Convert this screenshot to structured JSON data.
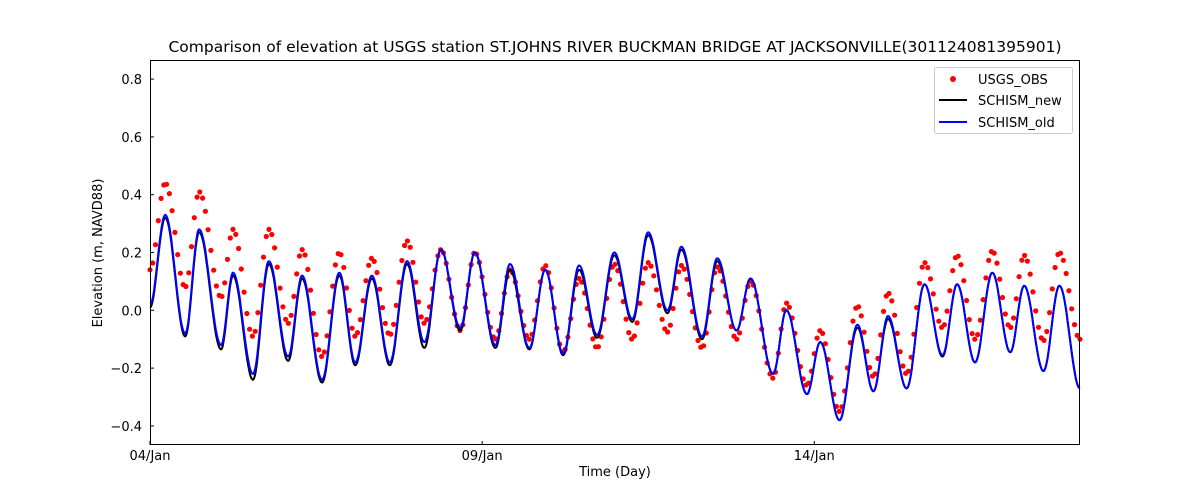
{
  "chart_data": {
    "type": "line",
    "title": "Comparison of elevation at USGS station ST.JOHNS RIVER BUCKMAN BRIDGE AT JACKSONVILLE(301124081395901)",
    "xlabel": "Time (Day)",
    "ylabel": "Elevation (m, NAVD88)",
    "x_unit": "days since 04/Jan",
    "xlim": [
      0,
      14
    ],
    "ylim": [
      -0.466,
      0.866
    ],
    "x_ticks": [
      {
        "value": 0,
        "label": "04/Jan"
      },
      {
        "value": 5,
        "label": "09/Jan"
      },
      {
        "value": 10,
        "label": "14/Jan"
      }
    ],
    "y_ticks": [
      {
        "value": 0.8,
        "label": "0.8"
      },
      {
        "value": 0.6,
        "label": "0.6"
      },
      {
        "value": 0.4,
        "label": "0.4"
      },
      {
        "value": 0.2,
        "label": "0.2"
      },
      {
        "value": 0.0,
        "label": "0.0"
      },
      {
        "value": -0.2,
        "label": "−0.2"
      },
      {
        "value": -0.4,
        "label": "−0.4"
      }
    ],
    "grid": false,
    "legend_position": "top-right",
    "extrema_times": [
      0,
      0.23,
      0.53,
      0.74,
      1.07,
      1.25,
      1.55,
      1.79,
      2.08,
      2.29,
      2.59,
      2.85,
      3.09,
      3.34,
      3.61,
      3.87,
      4.13,
      4.38,
      4.67,
      4.89,
      5.2,
      5.42,
      5.71,
      5.95,
      6.22,
      6.46,
      6.73,
      6.99,
      7.26,
      7.5,
      7.79,
      8.0,
      8.31,
      8.54,
      8.83,
      9.04,
      9.38,
      9.58,
      9.89,
      10.09,
      10.38,
      10.65,
      10.89,
      11.11,
      11.39,
      11.66,
      11.93,
      12.15,
      12.42,
      12.68,
      12.95,
      13.16,
      13.45,
      13.69,
      14.0
    ],
    "series": [
      {
        "name": "USGS_OBS",
        "style": "points",
        "color": "#ff0000",
        "values": [
          0.14,
          0.44,
          0.08,
          0.41,
          0.045,
          0.28,
          -0.09,
          0.28,
          -0.045,
          0.21,
          -0.16,
          0.2,
          -0.09,
          0.18,
          -0.085,
          0.24,
          -0.045,
          0.21,
          -0.07,
          0.2,
          -0.1,
          0.14,
          -0.1,
          0.155,
          -0.145,
          0.11,
          -0.13,
          0.16,
          -0.1,
          0.165,
          -0.075,
          0.155,
          -0.13,
          0.15,
          -0.1,
          0.1,
          -0.235,
          0.025,
          -0.26,
          -0.07,
          -0.35,
          0.015,
          -0.23,
          0.06,
          -0.22,
          0.165,
          -0.06,
          0.19,
          -0.1,
          0.205,
          -0.06,
          0.19,
          -0.105,
          0.2,
          -0.1
        ]
      },
      {
        "name": "SCHISM_new",
        "style": "line",
        "color": "#000000",
        "values": [
          0.01,
          0.32,
          -0.09,
          0.27,
          -0.135,
          0.12,
          -0.24,
          0.16,
          -0.175,
          0.11,
          -0.25,
          0.12,
          -0.19,
          0.11,
          -0.19,
          0.16,
          -0.13,
          0.21,
          -0.07,
          0.2,
          -0.13,
          0.14,
          -0.135,
          0.14,
          -0.155,
          0.14,
          -0.095,
          0.19,
          -0.04,
          0.26,
          -0.01,
          0.21,
          -0.1,
          0.17,
          -0.07,
          0.11,
          -0.22,
          0.0,
          -0.29,
          -0.11,
          -0.38,
          -0.06,
          -0.28,
          -0.03,
          -0.27,
          0.09,
          -0.16,
          0.09,
          -0.18,
          0.13,
          -0.145,
          0.085,
          -0.21,
          0.085,
          -0.27
        ]
      },
      {
        "name": "SCHISM_old",
        "style": "line",
        "color": "#0000ff",
        "values": [
          0.02,
          0.33,
          -0.08,
          0.28,
          -0.12,
          0.13,
          -0.22,
          0.17,
          -0.16,
          0.12,
          -0.24,
          0.13,
          -0.18,
          0.12,
          -0.18,
          0.17,
          -0.11,
          0.21,
          -0.06,
          0.2,
          -0.12,
          0.16,
          -0.13,
          0.14,
          -0.15,
          0.155,
          -0.085,
          0.2,
          -0.03,
          0.27,
          0.0,
          0.22,
          -0.09,
          0.18,
          -0.07,
          0.11,
          -0.22,
          0.0,
          -0.29,
          -0.11,
          -0.38,
          -0.05,
          -0.28,
          -0.02,
          -0.27,
          0.09,
          -0.155,
          0.09,
          -0.18,
          0.13,
          -0.145,
          0.085,
          -0.21,
          0.085,
          -0.27
        ]
      }
    ]
  }
}
